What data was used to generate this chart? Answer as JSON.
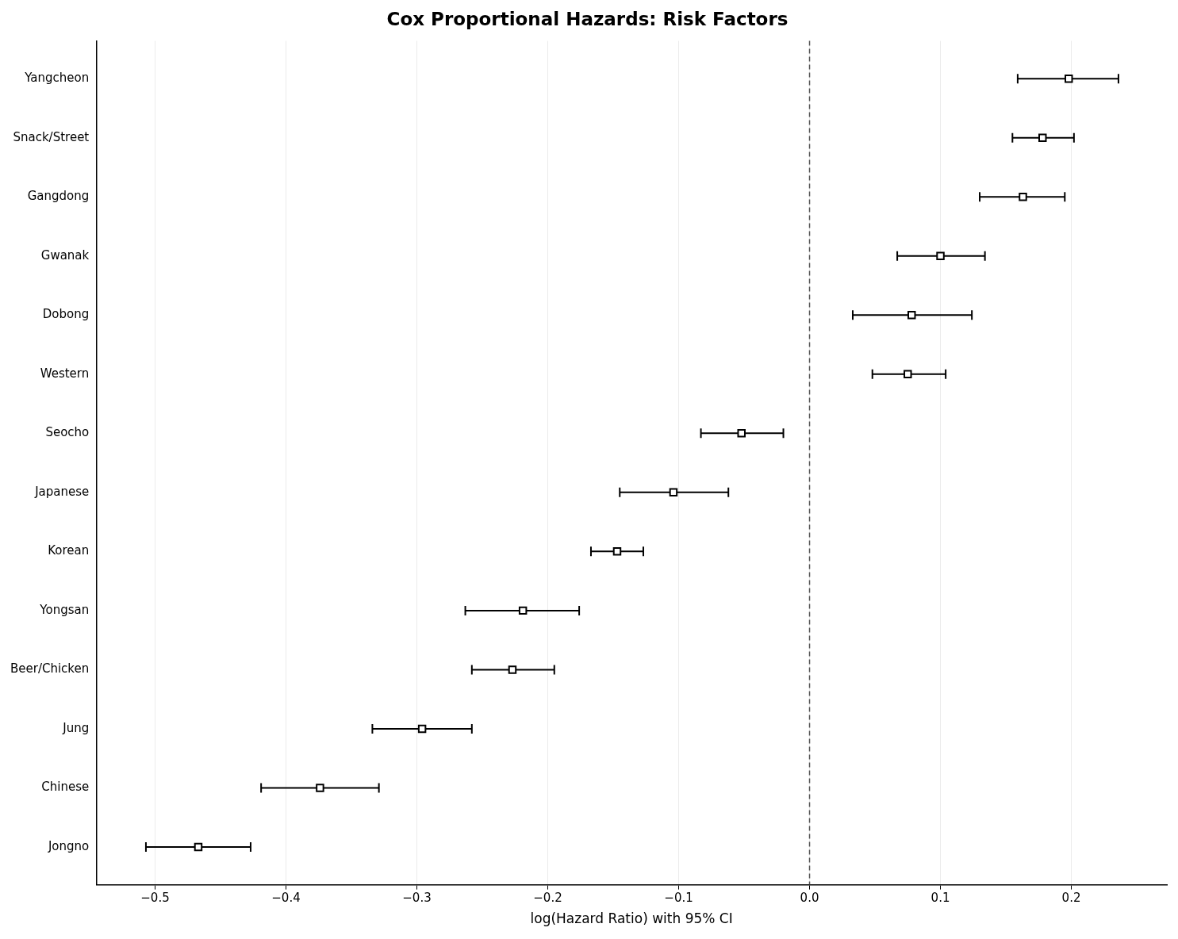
{
  "chart_data": {
    "type": "scatter",
    "orientation": "horizontal",
    "title": "Cox Proportional Hazards: Risk Factors",
    "xlabel": "log(Hazard Ratio) with 95% CI",
    "categories": [
      "Yangcheon",
      "Snack/Street",
      "Gangdong",
      "Gwanak",
      "Dobong",
      "Western",
      "Seocho",
      "Japanese",
      "Korean",
      "Yongsan",
      "Beer/Chicken",
      "Jung",
      "Chinese",
      "Jongno"
    ],
    "values": [
      0.198,
      0.178,
      0.163,
      0.1,
      0.078,
      0.075,
      -0.052,
      -0.104,
      -0.147,
      -0.219,
      -0.227,
      -0.296,
      -0.374,
      -0.467
    ],
    "errors": [
      [
        0.159,
        0.236
      ],
      [
        0.155,
        0.202
      ],
      [
        0.13,
        0.195
      ],
      [
        0.067,
        0.134
      ],
      [
        0.033,
        0.124
      ],
      [
        0.048,
        0.104
      ],
      [
        -0.083,
        -0.02
      ],
      [
        -0.145,
        -0.062
      ],
      [
        -0.167,
        -0.127
      ],
      [
        -0.263,
        -0.176
      ],
      [
        -0.258,
        -0.195
      ],
      [
        -0.334,
        -0.258
      ],
      [
        -0.419,
        -0.329
      ],
      [
        -0.507,
        -0.427
      ]
    ],
    "color": "#000000",
    "marker": "square",
    "xlim": [
      -0.545,
      0.273
    ],
    "xticks": [
      {
        "value": -0.5,
        "label": "−0.5"
      },
      {
        "value": -0.4,
        "label": "−0.4"
      },
      {
        "value": -0.3,
        "label": "−0.3"
      },
      {
        "value": -0.2,
        "label": "−0.2"
      },
      {
        "value": -0.1,
        "label": "−0.1"
      },
      {
        "value": 0,
        "label": "0.0"
      },
      0.1,
      0.2
    ],
    "ref_lines": [
      {
        "axis": "x",
        "value": 0,
        "color": "#555555",
        "line_style": "dashed"
      }
    ],
    "grid": "x",
    "legend": false
  }
}
